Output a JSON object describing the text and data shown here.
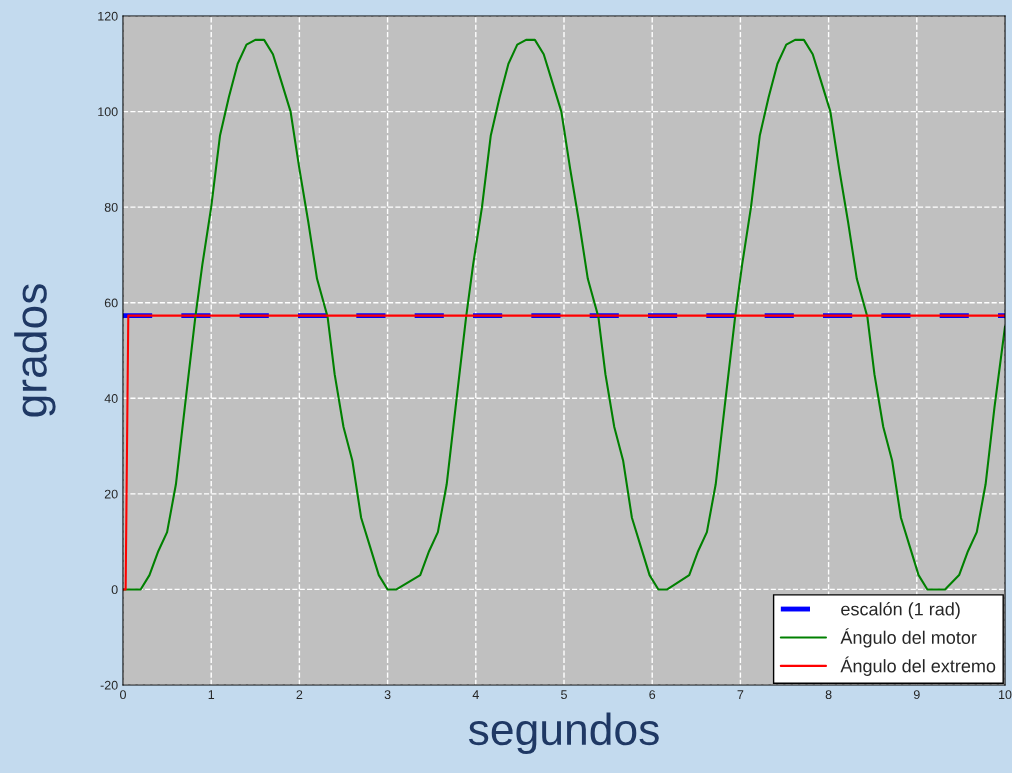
{
  "chart_data": {
    "type": "line",
    "xlabel": "segundos",
    "ylabel": "grados",
    "xlim": [
      0,
      10
    ],
    "ylim": [
      -20,
      120
    ],
    "xticks": [
      0,
      1,
      2,
      3,
      4,
      5,
      6,
      7,
      8,
      9,
      10
    ],
    "yticks": [
      -20,
      0,
      20,
      40,
      60,
      80,
      100,
      120
    ],
    "grid": true,
    "legend": "bottom right",
    "series": [
      {
        "name": "escalón (1 rad)",
        "color": "#0000ff",
        "line_style": "dashed",
        "x": [
          0,
          10
        ],
        "values": [
          57.3,
          57.3
        ]
      },
      {
        "name": "Ángulo del motor",
        "color": "#008000",
        "line_style": "solid",
        "x": [
          0,
          0.1,
          0.2,
          0.3,
          0.4,
          0.5,
          0.6,
          0.7,
          0.82,
          0.9,
          1.0,
          1.1,
          1.2,
          1.3,
          1.4,
          1.5,
          1.6,
          1.7,
          1.8,
          1.9,
          2.0,
          2.1,
          2.2,
          2.32,
          2.4,
          2.5,
          2.6,
          2.7,
          2.8,
          2.9,
          3.0,
          3.1,
          3.37,
          3.47,
          3.57,
          3.67,
          3.77,
          3.89,
          3.97,
          4.07,
          4.17,
          4.27,
          4.37,
          4.47,
          4.57,
          4.67,
          4.77,
          4.87,
          4.97,
          5.07,
          5.17,
          5.27,
          5.39,
          5.47,
          5.57,
          5.67,
          5.77,
          5.87,
          5.97,
          6.07,
          6.17,
          6.42,
          6.52,
          6.62,
          6.72,
          6.82,
          6.94,
          7.02,
          7.12,
          7.22,
          7.32,
          7.42,
          7.52,
          7.62,
          7.72,
          7.82,
          7.92,
          8.02,
          8.12,
          8.22,
          8.32,
          8.44,
          8.52,
          8.62,
          8.72,
          8.82,
          8.92,
          9.02,
          9.12,
          9.22,
          9.32,
          9.48,
          9.58,
          9.68,
          9.78,
          9.88,
          10.0
        ],
        "values": [
          0,
          0,
          0,
          3,
          8,
          12,
          22,
          38,
          57,
          68,
          80,
          95,
          103,
          110,
          114,
          115,
          115,
          112,
          106,
          100,
          88,
          77,
          65,
          57,
          45,
          34,
          27,
          15,
          9,
          3,
          0,
          0,
          3,
          8,
          12,
          22,
          38,
          57,
          68,
          80,
          95,
          103,
          110,
          114,
          115,
          115,
          112,
          106,
          100,
          88,
          77,
          65,
          57,
          45,
          34,
          27,
          15,
          9,
          3,
          0,
          0,
          3,
          8,
          12,
          22,
          38,
          57,
          68,
          80,
          95,
          103,
          110,
          114,
          115,
          115,
          112,
          106,
          100,
          88,
          77,
          65,
          57,
          45,
          34,
          27,
          15,
          9,
          3,
          0,
          0,
          0,
          3,
          8,
          12,
          22,
          38,
          55
        ]
      },
      {
        "name": "Ángulo del extremo",
        "color": "#ff0000",
        "line_style": "solid",
        "x": [
          0,
          0.03,
          0.06,
          10
        ],
        "values": [
          0,
          0,
          57.3,
          57.3
        ]
      }
    ]
  }
}
